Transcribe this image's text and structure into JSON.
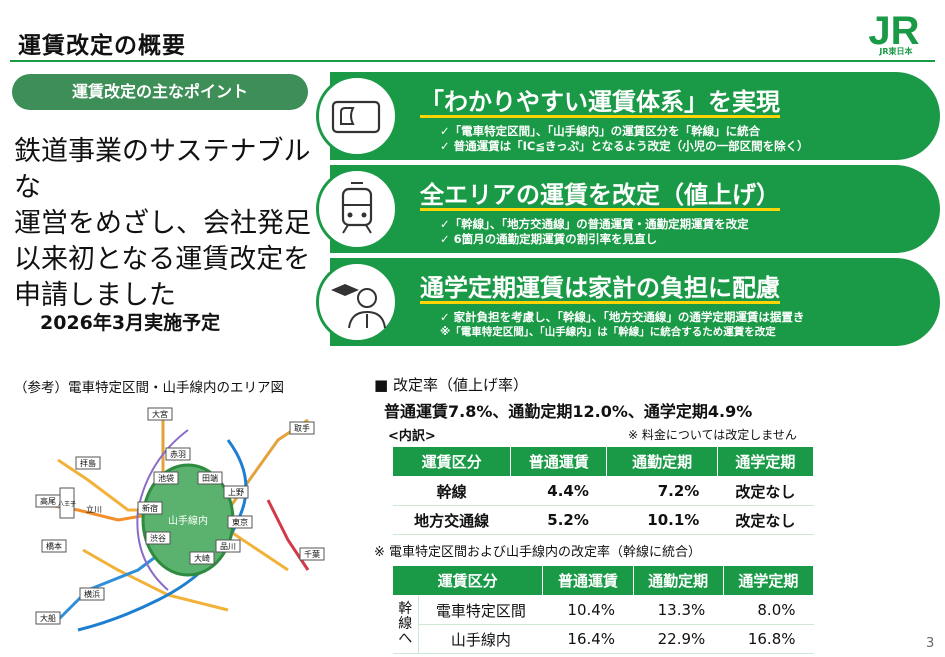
{
  "header": {
    "title": "運賃改定の概要",
    "logo_text": "JR",
    "logo_sub": "JR東日本"
  },
  "points_label": "運賃改定の主なポイント",
  "lead_lines": [
    "鉄道事業のサステナブルな",
    "運営をめざし、会社発足",
    "以来初となる運賃改定を",
    "申請しました"
  ],
  "schedule": "2026年3月実施予定",
  "bands": [
    {
      "icon": "ic-card-icon",
      "title": "「わかりやすい運賃体系」を実現",
      "bullets": [
        "✓「電車特定区間」、「山手線内」の運賃区分を「幹線」に統合",
        "✓ 普通運賃は「IC≦きっぷ」となるよう改定（小児の一部区間を除く）"
      ]
    },
    {
      "icon": "train-icon",
      "title": "全エリアの運賃を改定（値上げ）",
      "bullets": [
        "✓「幹線」、「地方交通線」の普通運賃・通勤定期運賃を改定",
        "✓ 6箇月の通勤定期運賃の割引率を見直し"
      ]
    },
    {
      "icon": "student-icon",
      "title": "通学定期運賃は家計の負担に配慮",
      "bullets": [
        "✓ 家計負担を考慮し、「幹線」、「地方交通線」の通学定期運賃は据置き",
        "※「電車特定区間」、「山手線内」は「幹線」に統合するため運賃を改定"
      ]
    }
  ],
  "map": {
    "caption": "（参考）電車特定区間・山手線内のエリア図",
    "center_label": "山手線内",
    "stations": [
      "大宮",
      "取手",
      "拝島",
      "高尾",
      "八王子",
      "赤羽",
      "池袋",
      "田端",
      "上野",
      "新宿",
      "東京",
      "渋谷",
      "品川",
      "大崎",
      "橋本",
      "千葉",
      "大船",
      "横浜",
      "立川"
    ]
  },
  "rates": {
    "heading": "■ 改定率（値上げ率）",
    "summary": "普通運賃7.8%、通勤定期12.0%、通学定期4.9%",
    "breakdown_label": "<内訳>",
    "fee_note": "※ 料金については改定しません",
    "table1": {
      "headers": [
        "運賃区分",
        "普通運賃",
        "通勤定期",
        "通学定期"
      ],
      "rows": [
        [
          "幹線",
          "4.4%",
          "7.2%",
          "改定なし"
        ],
        [
          "地方交通線",
          "5.2%",
          "10.1%",
          "改定なし"
        ]
      ]
    },
    "table2_note": "※ 電車特定区間および山手線内の改定率（幹線に統合）",
    "table2": {
      "headers": [
        "運賃区分",
        "普通運賃",
        "通勤定期",
        "通学定期"
      ],
      "side_label": "幹線へ",
      "rows": [
        [
          "電車特定区間",
          "10.4%",
          "13.3%",
          "8.0%"
        ],
        [
          "山手線内",
          "16.4%",
          "22.9%",
          "16.8%"
        ]
      ]
    }
  },
  "page_number": "3",
  "colors": {
    "brand_green": "#1a9a46",
    "pill_green": "#3e8e58",
    "underline_yellow": "#ffd400"
  }
}
